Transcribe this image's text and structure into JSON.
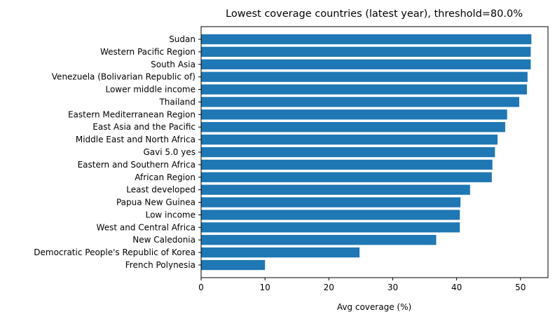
{
  "chart_data": {
    "type": "bar",
    "orientation": "horizontal",
    "title": "Lowest coverage countries (latest year), threshold=80.0%",
    "xlabel": "Avg coverage (%)",
    "ylabel": "",
    "xlim": [
      0,
      54.3
    ],
    "xticks": [
      0,
      10,
      20,
      30,
      40,
      50
    ],
    "bar_color": "#1f77b4",
    "grid": false,
    "categories": [
      "Sudan",
      "Western Pacific Region",
      "South Asia",
      "Venezuela (Bolivarian Republic of)",
      "Lower middle income",
      "Thailand",
      "Eastern Mediterranean Region",
      "East Asia and the Pacific",
      "Middle East and North Africa",
      "Gavi 5.0 yes",
      "Eastern and Southern Africa",
      "African Region",
      "Least developed",
      "Papua New Guinea",
      "Low income",
      "West and Central Africa",
      "New Caledonia",
      "Democratic People's Republic of Korea",
      "French Polynesia"
    ],
    "values": [
      51.7,
      51.6,
      51.6,
      51.1,
      51.0,
      49.8,
      47.9,
      47.6,
      46.4,
      46.0,
      45.6,
      45.5,
      42.1,
      40.6,
      40.5,
      40.5,
      36.8,
      24.8,
      10.0
    ]
  }
}
